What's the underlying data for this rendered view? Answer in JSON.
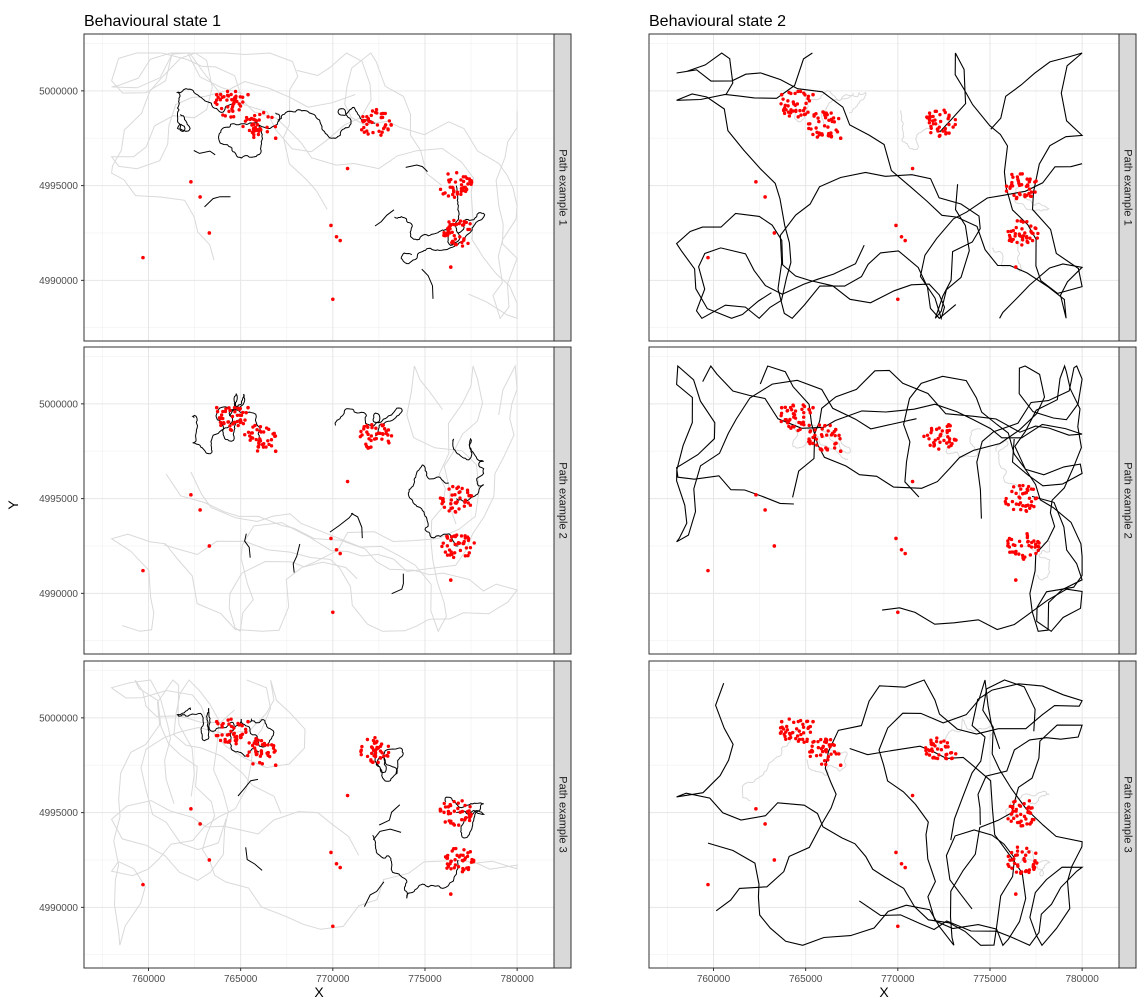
{
  "chart_data": [
    {
      "type": "line",
      "title": "Behavioural state 1",
      "xlabel": "X",
      "ylabel": "Y",
      "xlim": [
        756500,
        782000
      ],
      "ylim": [
        4986800,
        5003000
      ],
      "x_ticks": [
        760000,
        765000,
        770000,
        775000,
        780000
      ],
      "y_ticks": [
        4990000,
        4995000,
        5000000
      ],
      "facets": [
        "Path example 1",
        "Path example 2",
        "Path example 3"
      ],
      "background_path_color": "#d9d9d9",
      "highlight_path_color": "#000000",
      "point_color": "#ff0000",
      "grid": true,
      "clusters": [
        {
          "x": 764500,
          "y": 4999300
        },
        {
          "x": 766000,
          "y": 4998200
        },
        {
          "x": 772300,
          "y": 4998300
        },
        {
          "x": 776700,
          "y": 4995000
        },
        {
          "x": 776800,
          "y": 4992500
        }
      ],
      "points": [
        {
          "x": 759700,
          "y": 4991200
        },
        {
          "x": 762300,
          "y": 4995200
        },
        {
          "x": 762800,
          "y": 4994400
        },
        {
          "x": 763300,
          "y": 4992500
        },
        {
          "x": 763700,
          "y": 4999800
        },
        {
          "x": 765400,
          "y": 4999800
        },
        {
          "x": 766900,
          "y": 4997500
        },
        {
          "x": 769900,
          "y": 4992900
        },
        {
          "x": 770200,
          "y": 4992300
        },
        {
          "x": 770400,
          "y": 4992100
        },
        {
          "x": 770800,
          "y": 4995900
        },
        {
          "x": 770000,
          "y": 4989000
        },
        {
          "x": 776400,
          "y": 4990700
        }
      ]
    },
    {
      "type": "line",
      "title": "Behavioural state 2",
      "xlabel": "X",
      "xlim": [
        756500,
        782000
      ],
      "ylim": [
        4986800,
        5003000
      ],
      "x_ticks": [
        760000,
        765000,
        770000,
        775000,
        780000
      ],
      "facets": [
        "Path example 1",
        "Path example 2",
        "Path example 3"
      ],
      "background_path_color": "#d9d9d9",
      "highlight_path_color": "#000000",
      "point_color": "#ff0000",
      "grid": true,
      "clusters": [
        {
          "x": 764500,
          "y": 4999300
        },
        {
          "x": 766000,
          "y": 4998200
        },
        {
          "x": 772300,
          "y": 4998300
        },
        {
          "x": 776700,
          "y": 4995000
        },
        {
          "x": 776800,
          "y": 4992500
        }
      ],
      "points": [
        {
          "x": 759700,
          "y": 4991200
        },
        {
          "x": 762300,
          "y": 4995200
        },
        {
          "x": 762800,
          "y": 4994400
        },
        {
          "x": 763300,
          "y": 4992500
        },
        {
          "x": 763700,
          "y": 4999800
        },
        {
          "x": 765400,
          "y": 4999800
        },
        {
          "x": 766900,
          "y": 4997500
        },
        {
          "x": 769900,
          "y": 4992900
        },
        {
          "x": 770200,
          "y": 4992300
        },
        {
          "x": 770400,
          "y": 4992100
        },
        {
          "x": 770800,
          "y": 4995900
        },
        {
          "x": 770000,
          "y": 4989000
        },
        {
          "x": 776400,
          "y": 4990700
        }
      ]
    }
  ]
}
